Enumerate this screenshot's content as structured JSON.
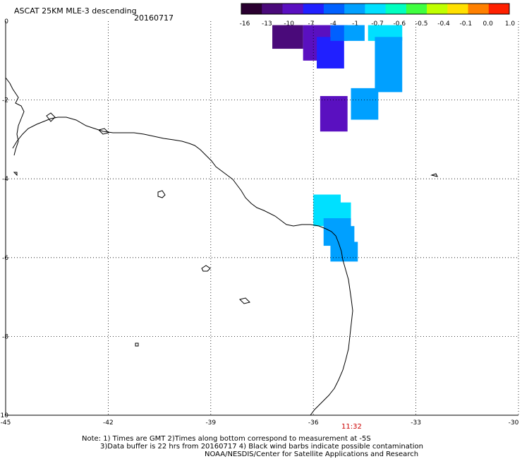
{
  "header": {
    "title": "ASCAT 25KM MLE-3 descending",
    "date": "20160717"
  },
  "colorbar": {
    "labels": [
      "-16",
      "-13",
      "-10",
      "-7",
      "-4",
      "-1",
      "-0.7",
      "-0.6",
      "-0.5",
      "-0.4",
      "-0.1",
      "0.0",
      "1.0"
    ],
    "colors": [
      "#2a0030",
      "#4a0a7a",
      "#5a10c0",
      "#2020ff",
      "#0060ff",
      "#00a0ff",
      "#00e0ff",
      "#00ffc0",
      "#40ff40",
      "#c0ff00",
      "#ffe000",
      "#ff8000",
      "#ff2000"
    ]
  },
  "map": {
    "y_ticks": [
      "0",
      "-2",
      "-4",
      "-6",
      "-8",
      "-10"
    ],
    "x_ticks": [
      "-45",
      "-42",
      "-39",
      "-36",
      "-33",
      "-30"
    ],
    "time_label": "11:32",
    "lon_range": [
      -45,
      -30
    ],
    "lat_range": [
      -10,
      0
    ],
    "swath_cells": [
      {
        "lon": -37.2,
        "lat": -0.1,
        "w": 0.9,
        "h": 0.6,
        "color": "#4a0a7a"
      },
      {
        "lon": -36.3,
        "lat": -0.1,
        "w": 0.8,
        "h": 0.9,
        "color": "#5a10c0"
      },
      {
        "lon": -35.9,
        "lat": -0.4,
        "w": 0.8,
        "h": 0.8,
        "color": "#2020ff"
      },
      {
        "lon": -35.5,
        "lat": -0.1,
        "w": 0.5,
        "h": 0.4,
        "color": "#0060ff"
      },
      {
        "lon": -35.1,
        "lat": -0.1,
        "w": 0.6,
        "h": 0.4,
        "color": "#00a0ff"
      },
      {
        "lon": -34.4,
        "lat": -0.1,
        "w": 1.0,
        "h": 0.4,
        "color": "#00e0ff"
      },
      {
        "lon": -34.2,
        "lat": -0.4,
        "w": 0.8,
        "h": 1.4,
        "color": "#00a0ff"
      },
      {
        "lon": -35.8,
        "lat": -1.9,
        "w": 0.8,
        "h": 0.9,
        "color": "#5a10c0"
      },
      {
        "lon": -34.9,
        "lat": -1.7,
        "w": 0.8,
        "h": 0.8,
        "color": "#00a0ff"
      },
      {
        "lon": -36.0,
        "lat": -4.4,
        "w": 0.8,
        "h": 0.8,
        "color": "#00e0ff"
      },
      {
        "lon": -35.4,
        "lat": -4.6,
        "w": 0.5,
        "h": 0.4,
        "color": "#00e0ff"
      },
      {
        "lon": -35.7,
        "lat": -5.0,
        "w": 0.8,
        "h": 0.7,
        "color": "#00a0ff"
      },
      {
        "lon": -35.2,
        "lat": -5.2,
        "w": 0.4,
        "h": 0.8,
        "color": "#00a0ff"
      },
      {
        "lon": -35.5,
        "lat": -5.6,
        "w": 0.8,
        "h": 0.5,
        "color": "#00a0ff"
      }
    ]
  },
  "footer": {
    "line1": "Note: 1) Times are GMT 2)Times along bottom correspond to measurement at -5S",
    "line2": "3)Data buffer is 22 hrs from 20160717 4) Black wind barbs indicate possible contamination",
    "line3": "NOAA/NESDIS/Center for Satellite Applications and Research"
  }
}
